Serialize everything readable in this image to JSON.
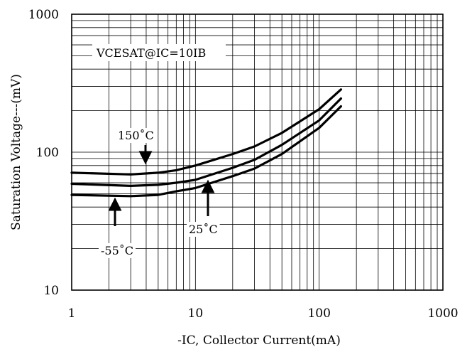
{
  "chart_data": {
    "type": "line",
    "annotation": "VCESAT@IC=10IB",
    "xlabel": "-IC, Collector Current(mA)",
    "ylabel": "Saturation Voltage---(mV)",
    "xscale": "log",
    "yscale": "log",
    "xlim": [
      1,
      1000
    ],
    "ylim": [
      10,
      1000
    ],
    "x_ticks": [
      "1",
      "10",
      "100",
      "1000"
    ],
    "y_ticks": [
      "10",
      "100",
      "1000"
    ],
    "grid": true,
    "series": [
      {
        "name": "150˚C",
        "x": [
          1,
          3,
          5,
          7,
          10,
          20,
          30,
          50,
          100,
          150
        ],
        "y": [
          71,
          69,
          71,
          74,
          80,
          97,
          110,
          138,
          205,
          285
        ]
      },
      {
        "name": "25˚C",
        "x": [
          1,
          3,
          5,
          7,
          10,
          20,
          30,
          50,
          100,
          150
        ],
        "y": [
          59,
          57,
          58,
          60,
          63,
          77,
          88,
          113,
          170,
          245
        ]
      },
      {
        "name": "-55˚C",
        "x": [
          1,
          3,
          5,
          7,
          10,
          20,
          30,
          50,
          100,
          150
        ],
        "y": [
          49,
          48,
          49,
          52,
          55,
          67,
          76,
          97,
          150,
          215
        ]
      }
    ]
  }
}
